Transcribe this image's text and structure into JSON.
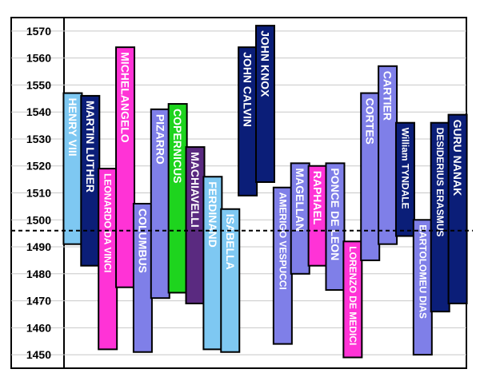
{
  "chart_data": {
    "type": "bar",
    "subtype": "floating-timeline",
    "title": "",
    "xlabel": "",
    "ylabel": "",
    "ylim": [
      1445,
      1575
    ],
    "yticks": [
      1450,
      1460,
      1470,
      1480,
      1490,
      1500,
      1510,
      1520,
      1530,
      1540,
      1550,
      1560,
      1570
    ],
    "grid": true,
    "reference_line": 1496,
    "bars": [
      {
        "label": "HENRY VIII",
        "start": 1491,
        "end": 1547,
        "color": "#7ec8f2"
      },
      {
        "label": "MARTIN LUTHER",
        "start": 1483,
        "end": 1546,
        "color": "#0b1e78"
      },
      {
        "label": "LEONARDO DA VINCI",
        "start": 1452,
        "end": 1519,
        "color": "#ff33d6"
      },
      {
        "label": "MICHELANGELO",
        "start": 1475,
        "end": 1564,
        "color": "#ff33d6"
      },
      {
        "label": "COLUMBUS",
        "start": 1451,
        "end": 1506,
        "color": "#7f7fe8"
      },
      {
        "label": "PIZARRO",
        "start": 1471,
        "end": 1541,
        "color": "#7f7fe8"
      },
      {
        "label": "COPERNICUS",
        "start": 1473,
        "end": 1543,
        "color": "#1ed41e"
      },
      {
        "label": "MACHIAVELLI",
        "start": 1469,
        "end": 1527,
        "color": "#5a2a80"
      },
      {
        "label": "FERDINAND",
        "start": 1452,
        "end": 1516,
        "color": "#7ec8f2"
      },
      {
        "label": "ISABELLA",
        "start": 1451,
        "end": 1504,
        "color": "#7ec8f2"
      },
      {
        "label": "JOHN CALVIN",
        "start": 1509,
        "end": 1564,
        "color": "#0b1e78"
      },
      {
        "label": "JOHN KNOX",
        "start": 1514,
        "end": 1572,
        "color": "#0b1e78"
      },
      {
        "label": "AMERIGO VESPUCCI",
        "start": 1454,
        "end": 1512,
        "color": "#7f7fe8"
      },
      {
        "label": "MAGELLAN",
        "start": 1480,
        "end": 1521,
        "color": "#7f7fe8"
      },
      {
        "label": "RAPHAEL",
        "start": 1483,
        "end": 1520,
        "color": "#ff33d6"
      },
      {
        "label": "PONCE DE LEON",
        "start": 1474,
        "end": 1521,
        "color": "#7f7fe8"
      },
      {
        "label": "LORENZO DE MEDICI",
        "start": 1449,
        "end": 1492,
        "color": "#ff33d6"
      },
      {
        "label": "CORTES",
        "start": 1485,
        "end": 1547,
        "color": "#7f7fe8"
      },
      {
        "label": "CARTIER",
        "start": 1491,
        "end": 1557,
        "color": "#7f7fe8"
      },
      {
        "label": "William TYNDALE",
        "start": 1494,
        "end": 1536,
        "color": "#0b1e78"
      },
      {
        "label": "BARTOLOMEU DIAS",
        "start": 1450,
        "end": 1500,
        "color": "#7f7fe8"
      },
      {
        "label": "DESIDERIUS ERASMUS",
        "start": 1466,
        "end": 1536,
        "color": "#0b1e78"
      },
      {
        "label": "GURU NANAK",
        "start": 1469,
        "end": 1539,
        "color": "#0b1e78"
      }
    ]
  }
}
